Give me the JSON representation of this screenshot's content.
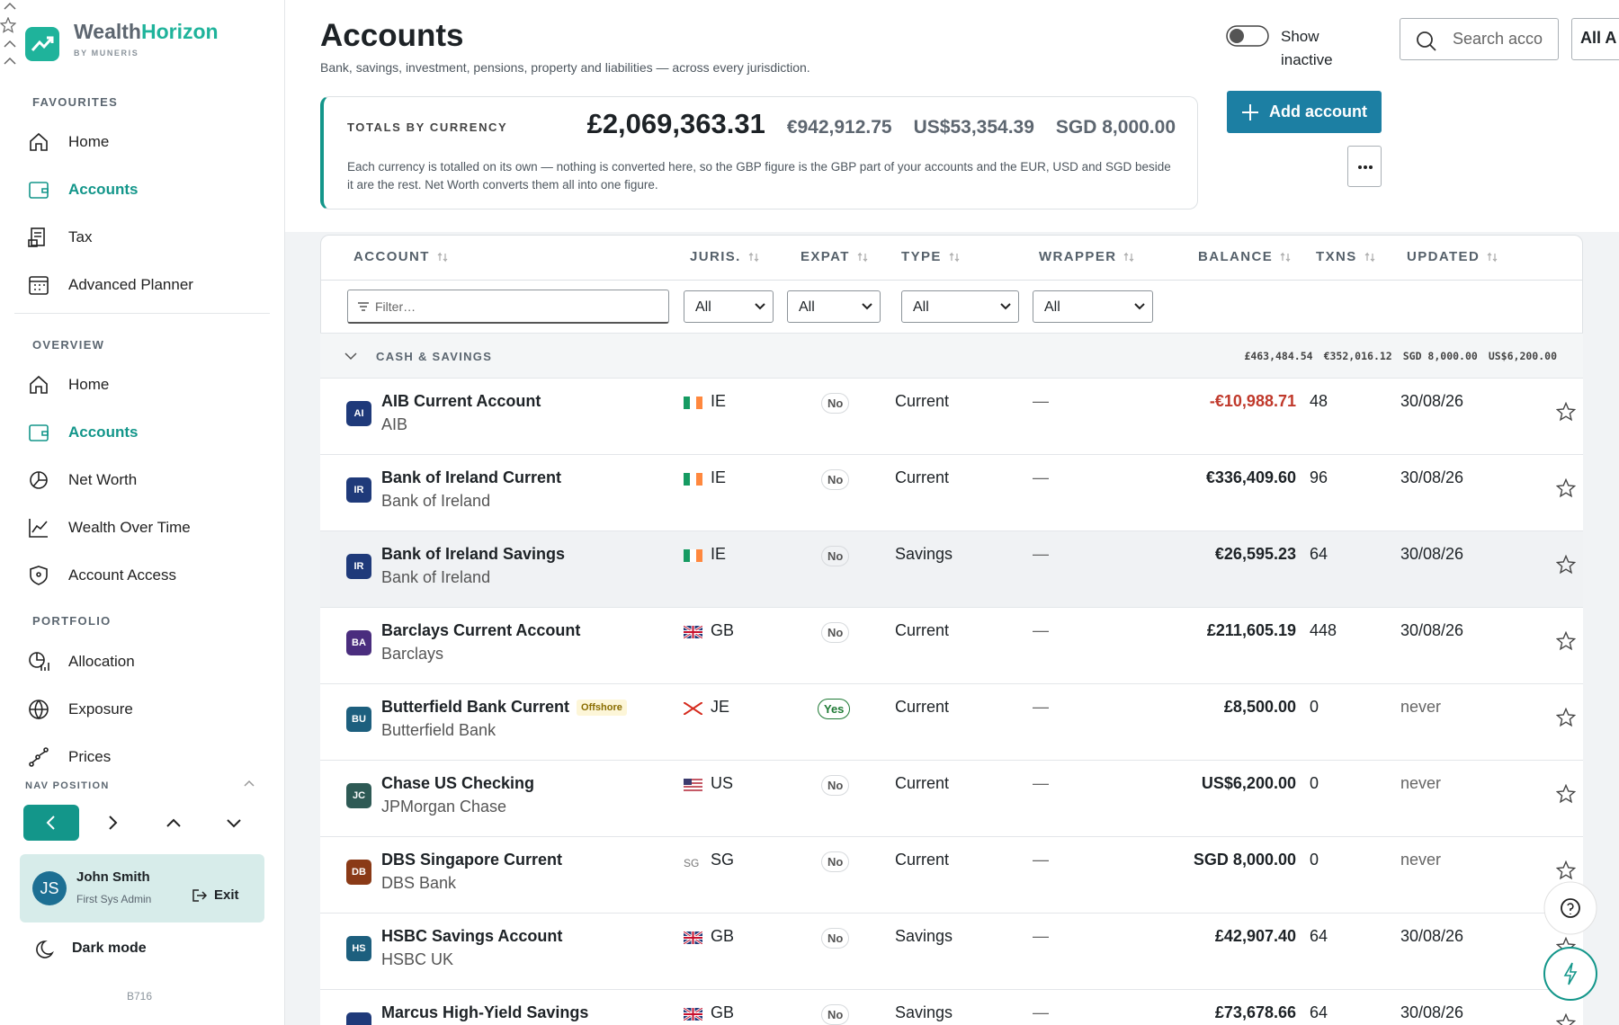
{
  "brand": {
    "name_a": "Wealth",
    "name_b": "Horizon",
    "sub": "BY MUNERIS"
  },
  "sidebar": {
    "favourites": {
      "title": "FAVOURITES",
      "items": [
        "Home",
        "Accounts",
        "Tax",
        "Advanced Planner"
      ]
    },
    "overview": {
      "title": "OVERVIEW",
      "items": [
        "Home",
        "Accounts",
        "Net Worth",
        "Wealth Over Time",
        "Account Access"
      ]
    },
    "portfolio": {
      "title": "PORTFOLIO",
      "items": [
        "Allocation",
        "Exposure",
        "Prices"
      ]
    },
    "nav_position": "NAV POSITION",
    "user": {
      "initials": "JS",
      "name": "John Smith",
      "role": "First Sys Admin",
      "exit": "Exit"
    },
    "dark_mode": "Dark mode",
    "build": "B716"
  },
  "header": {
    "title": "Accounts",
    "subtitle": "Bank, savings, investment, pensions, property and liabilities — across every jurisdiction.",
    "show_inactive": "Show inactive",
    "search_placeholder": "Search acco",
    "all_button": "All A",
    "add_account": "Add account"
  },
  "totals": {
    "label": "TOTALS BY CURRENCY",
    "amounts": [
      "£2,069,363.31",
      "€942,912.75",
      "US$53,354.39",
      "SGD 8,000.00"
    ],
    "note": "Each currency is totalled on its own — nothing is converted here, so the GBP figure is the GBP part of your accounts and the EUR, USD and SGD beside it are the rest. Net Worth converts them all into one figure."
  },
  "table": {
    "columns": [
      "ACCOUNT",
      "JURIS.",
      "EXPAT",
      "TYPE",
      "WRAPPER",
      "BALANCE",
      "TXNS",
      "UPDATED"
    ],
    "filter_placeholder": "Filter…",
    "filters": [
      "All",
      "All",
      "All",
      "All"
    ],
    "group": {
      "name": "CASH & SAVINGS",
      "totals": [
        "£463,484.54",
        "€352,016.12",
        "SGD 8,000.00",
        "US$6,200.00"
      ]
    },
    "rows": [
      {
        "initials": "AI",
        "color": "#1f3a7a",
        "name": "AIB Current Account",
        "institution": "AIB",
        "juris": "IE",
        "expat": "No",
        "expat_color": "#555555",
        "type": "Current",
        "wrapper": "—",
        "balance": "-€10,988.71",
        "txns": 48,
        "updated": "30/08/26"
      },
      {
        "initials": "IR",
        "color": "#1f3a7a",
        "name": "Bank of Ireland Current",
        "institution": "Bank of Ireland",
        "juris": "IE",
        "expat": "No",
        "expat_color": "#555555",
        "type": "Current",
        "wrapper": "—",
        "balance": "€336,409.60",
        "txns": 96,
        "updated": "30/08/26"
      },
      {
        "initials": "IR",
        "color": "#1f3a7a",
        "name": "Bank of Ireland Savings",
        "institution": "Bank of Ireland",
        "juris": "IE",
        "expat": "No",
        "expat_color": "#555555",
        "type": "Savings",
        "wrapper": "—",
        "balance": "€26,595.23",
        "txns": 64,
        "updated": "30/08/26"
      },
      {
        "initials": "BA",
        "color": "#4a2d7e",
        "name": "Barclays Current Account",
        "institution": "Barclays",
        "juris": "GB",
        "expat": "No",
        "expat_color": "#555555",
        "type": "Current",
        "wrapper": "—",
        "balance": "£211,605.19",
        "txns": 448,
        "updated": "30/08/26"
      },
      {
        "initials": "BU",
        "color": "#1d5f7e",
        "name": "Butterfield Bank Current",
        "badge": "Offshore",
        "institution": "Butterfield Bank",
        "juris": "JE",
        "expat": "Yes",
        "expat_color": "#1f7a35",
        "type": "Current",
        "wrapper": "—",
        "balance": "£8,500.00",
        "txns": 0,
        "updated": "never"
      },
      {
        "initials": "JC",
        "color": "#2e5a55",
        "name": "Chase US Checking",
        "institution": "JPMorgan Chase",
        "juris": "US",
        "expat": "No",
        "expat_color": "#555555",
        "type": "Current",
        "wrapper": "—",
        "balance": "US$6,200.00",
        "txns": 0,
        "updated": "never"
      },
      {
        "initials": "DB",
        "color": "#8a3a17",
        "name": "DBS Singapore Current",
        "institution": "DBS Bank",
        "flag_text": "SG",
        "juris": "SG",
        "expat": "No",
        "expat_color": "#555555",
        "type": "Current",
        "wrapper": "—",
        "balance": "SGD 8,000.00",
        "txns": 0,
        "updated": "never"
      },
      {
        "initials": "HS",
        "color": "#1d5f7e",
        "name": "HSBC Savings Account",
        "institution": "HSBC UK",
        "juris": "GB",
        "expat": "No",
        "expat_color": "#555555",
        "type": "Savings",
        "wrapper": "—",
        "balance": "£42,907.40",
        "txns": 64,
        "updated": "30/08/26"
      },
      {
        "color": "#1f3a7a",
        "name": "Marcus High-Yield Savings",
        "juris": "GB",
        "expat": "No",
        "expat_color": "#555555",
        "type": "Savings",
        "wrapper": "—",
        "balance": "£73,678.66",
        "txns": 64,
        "updated": "30/08/26"
      }
    ]
  }
}
